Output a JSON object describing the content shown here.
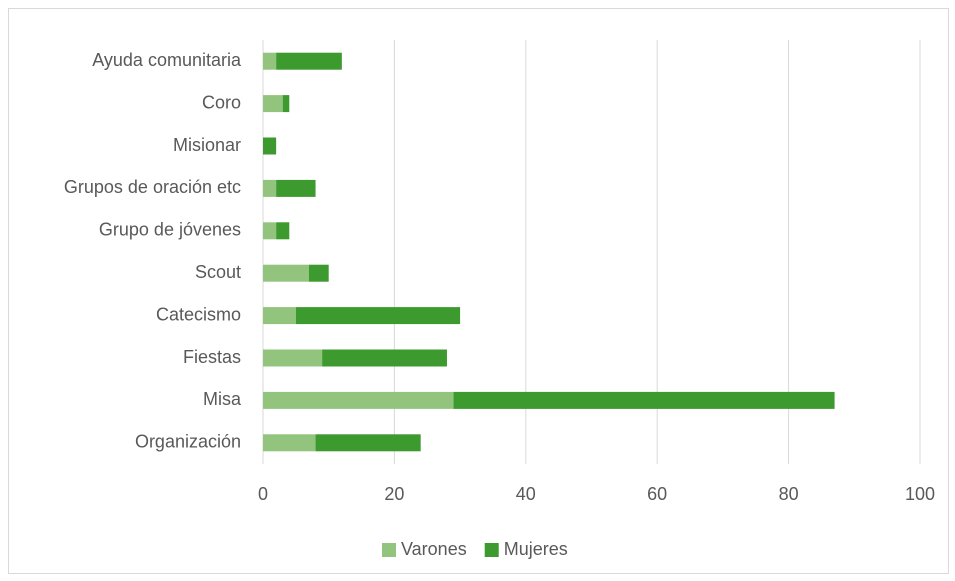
{
  "chart_data": {
    "type": "bar",
    "orientation": "horizontal",
    "stacked": true,
    "categories": [
      "Ayuda comunitaria",
      "Coro",
      "Misionar",
      "Grupos de oración etc",
      "Grupo de jóvenes",
      "Scout",
      "Catecismo",
      "Fiestas",
      "Misa",
      "Organización"
    ],
    "series": [
      {
        "name": "Varones",
        "color": "#93c47d",
        "values": [
          2,
          3,
          0,
          2,
          2,
          7,
          5,
          9,
          29,
          8
        ]
      },
      {
        "name": "Mujeres",
        "color": "#3d9a2f",
        "values": [
          10,
          1,
          2,
          6,
          2,
          3,
          25,
          19,
          58,
          16
        ]
      }
    ],
    "xlim": [
      0,
      100
    ],
    "xticks": [
      0,
      20,
      40,
      60,
      80,
      100
    ],
    "grid": true,
    "legend": "bottom"
  }
}
